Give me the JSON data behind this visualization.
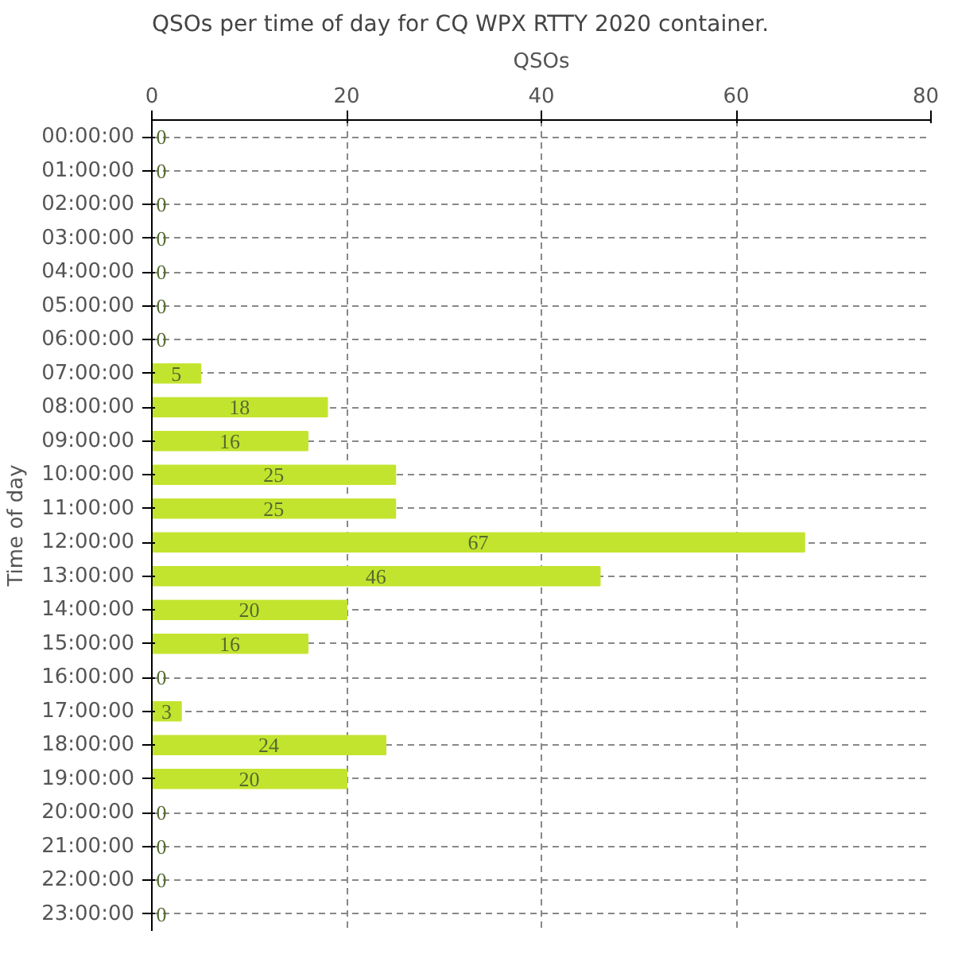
{
  "chart_data": {
    "type": "bar",
    "orientation": "horizontal",
    "title": "QSOs per time of day for CQ WPX RTTY 2020 container.",
    "xlabel": "QSOs",
    "ylabel": "Time of day",
    "categories": [
      "00:00:00",
      "01:00:00",
      "02:00:00",
      "03:00:00",
      "04:00:00",
      "05:00:00",
      "06:00:00",
      "07:00:00",
      "08:00:00",
      "09:00:00",
      "10:00:00",
      "11:00:00",
      "12:00:00",
      "13:00:00",
      "14:00:00",
      "15:00:00",
      "16:00:00",
      "17:00:00",
      "18:00:00",
      "19:00:00",
      "20:00:00",
      "21:00:00",
      "22:00:00",
      "23:00:00"
    ],
    "values": [
      0,
      0,
      0,
      0,
      0,
      0,
      0,
      5,
      18,
      16,
      25,
      25,
      67,
      46,
      20,
      16,
      0,
      3,
      24,
      20,
      0,
      0,
      0,
      0
    ],
    "color": "#c3e42e",
    "xlim": [
      0,
      80
    ],
    "xticks": [
      0,
      20,
      40,
      60,
      80
    ],
    "grid": true,
    "data_labels": true
  }
}
